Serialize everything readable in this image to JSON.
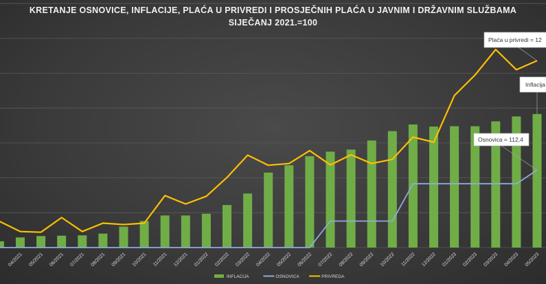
{
  "chart_data": {
    "type": "bar+line",
    "title_line1": "KRETANJE OSNOVICE, INFLACIJE, PLAĆA U PRIVREDI I PROSJEČNIH PLAĆA U JAVNIM I DRŽAVNIM SLUŽBAMA",
    "title_line2": "SIJEČANJ 2021.=100",
    "categories": [
      "04/2021",
      "05/2021",
      "06/2021",
      "07/2021",
      "08/2021",
      "09/2021",
      "10/2021",
      "11/2021",
      "12/2021",
      "01/2022",
      "02/2022",
      "03/2022",
      "04/2022",
      "05/2022",
      "06/2022",
      "07/2022",
      "08/2022",
      "09/2022",
      "10/2022",
      "11/2022",
      "12/2022",
      "01/2023",
      "02/2023",
      "03/2023",
      "04/2023",
      "05/2023"
    ],
    "series": [
      {
        "name": "INFLACIJA",
        "kind": "bar",
        "color": "#70ad47",
        "pre_value": 101.8,
        "values": [
          102.9,
          103.3,
          103.4,
          103.5,
          104.0,
          106.0,
          107.6,
          109.2,
          109.2,
          109.7,
          112.2,
          115.5,
          121.5,
          123.6,
          126.2,
          127.5,
          128.1,
          130.7,
          133.4,
          135.3,
          134.7,
          134.8,
          134.8,
          136.2,
          137.6,
          138.3
        ]
      },
      {
        "name": "OSNOVICA",
        "kind": "line",
        "color": "#8faadc",
        "pre_value": 100,
        "values": [
          100,
          100,
          100,
          100,
          100,
          100,
          100,
          100,
          100,
          100,
          100,
          100,
          100,
          100,
          100,
          107.6,
          107.6,
          107.6,
          107.6,
          118.3,
          118.3,
          118.3,
          118.3,
          118.3,
          118.3,
          122.2
        ]
      },
      {
        "name": "PRIVREDA",
        "kind": "line",
        "color": "#ffc000",
        "pre_value": 107.5,
        "values": [
          104.6,
          104.4,
          108.6,
          104.6,
          107.0,
          106.6,
          107.0,
          114.9,
          112.5,
          114.7,
          120.1,
          126.5,
          123.6,
          124.1,
          127.8,
          123.7,
          126.6,
          124.1,
          125.3,
          131.7,
          130.2,
          143.6,
          149.5,
          156.8,
          151.0,
          153.6
        ]
      }
    ],
    "annotations": [
      {
        "text": "Plaća u privredi = 12",
        "series": "PRIVREDA"
      },
      {
        "text": "Inflacija",
        "series": "INFLACIJA"
      },
      {
        "text": "Osnovica = 112,4",
        "series": "OSNOVICA"
      }
    ],
    "ylim": [
      100,
      171
    ],
    "grid": true,
    "legend_position": "bottom"
  }
}
